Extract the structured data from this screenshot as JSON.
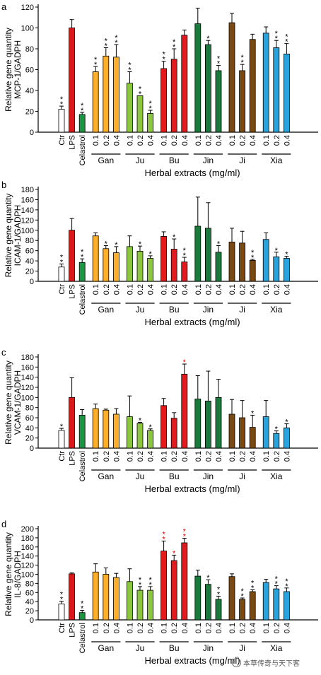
{
  "watermark": {
    "text": "本草传奇与天下客",
    "icon": "wechat-icon"
  },
  "colors": {
    "ctr": "#ffffff",
    "lps": "#d7191c",
    "celastrol": "#1a9641",
    "Gan": "#fdae2a",
    "Ju": "#8cc63f",
    "Bu": "#e31a1c",
    "Jin": "#1a7a3c",
    "Ji": "#7b4a12",
    "Xia": "#29a3dc",
    "sig_black": "#000000",
    "sig_red": "#e00000"
  },
  "chart_data": [
    {
      "panel_label": "a",
      "type": "bar",
      "ylabel": [
        "Relative gene quantity",
        "MCP-1/GADPH"
      ],
      "xlabel": "Herbal extracts (mg/ml)",
      "ylim": [
        0,
        120
      ],
      "yticks": [
        0,
        20,
        40,
        60,
        80,
        100,
        120
      ],
      "controls": [
        {
          "label": "Ctr",
          "value": 22,
          "err": 3,
          "color_key": "ctr",
          "sig": "**",
          "sig_color": "black"
        },
        {
          "label": "LPS",
          "value": 100,
          "err": 8,
          "color_key": "lps",
          "sig": "",
          "sig_color": "black"
        },
        {
          "label": "Celastrol",
          "value": 17,
          "err": 2,
          "color_key": "celastrol",
          "sig": "**",
          "sig_color": "black"
        }
      ],
      "groups": [
        {
          "name": "Gan",
          "color_key": "Gan",
          "doses": [
            "0.1",
            "0.2",
            "0.4"
          ],
          "values": [
            58,
            73,
            72
          ],
          "errs": [
            5,
            8,
            12
          ],
          "sig": [
            "**",
            "**",
            "**"
          ],
          "sig_color": [
            "black",
            "black",
            "black"
          ]
        },
        {
          "name": "Ju",
          "color_key": "Ju",
          "doses": [
            "0.1",
            "0.2",
            "0.4"
          ],
          "values": [
            47,
            35,
            18
          ],
          "errs": [
            11,
            0,
            3
          ],
          "sig": [
            "**",
            "**",
            "**"
          ],
          "sig_color": [
            "black",
            "black",
            "black"
          ]
        },
        {
          "name": "Bu",
          "color_key": "Bu",
          "doses": [
            "0.1",
            "0.2",
            "0.4"
          ],
          "values": [
            61,
            70,
            93
          ],
          "errs": [
            7,
            10,
            5
          ],
          "sig": [
            "**",
            "**",
            ""
          ],
          "sig_color": [
            "black",
            "black",
            "black"
          ]
        },
        {
          "name": "Jin",
          "color_key": "Jin",
          "doses": [
            "0.1",
            "0.2",
            "0.4"
          ],
          "values": [
            104,
            84,
            59
          ],
          "errs": [
            15,
            4,
            5
          ],
          "sig": [
            "",
            "*",
            "**"
          ],
          "sig_color": [
            "black",
            "black",
            "black"
          ]
        },
        {
          "name": "Ji",
          "color_key": "Ji",
          "doses": [
            "0.1",
            "0.2",
            "0.4"
          ],
          "values": [
            105,
            59,
            89
          ],
          "errs": [
            9,
            6,
            5
          ],
          "sig": [
            "",
            "**",
            ""
          ],
          "sig_color": [
            "black",
            "black",
            "black"
          ]
        },
        {
          "name": "Xia",
          "color_key": "Xia",
          "doses": [
            "0.1",
            "0.2",
            "0.4"
          ],
          "values": [
            95,
            81,
            75
          ],
          "errs": [
            6,
            7,
            10
          ],
          "sig": [
            "",
            "**",
            "**"
          ],
          "sig_color": [
            "black",
            "black",
            "black"
          ]
        }
      ]
    },
    {
      "panel_label": "b",
      "type": "bar",
      "ylabel": [
        "Relative gene quantity",
        "ICAM-1/GADPH"
      ],
      "xlabel": "Herbal extracts (mg/ml)",
      "ylim": [
        0,
        180
      ],
      "yticks": [
        0,
        20,
        40,
        60,
        80,
        100,
        120,
        140,
        160,
        180
      ],
      "controls": [
        {
          "label": "Ctr",
          "value": 28,
          "err": 6,
          "color_key": "ctr",
          "sig": "**",
          "sig_color": "black"
        },
        {
          "label": "LPS",
          "value": 100,
          "err": 23,
          "color_key": "lps",
          "sig": "",
          "sig_color": "black"
        },
        {
          "label": "Celastrol",
          "value": 37,
          "err": 7,
          "color_key": "celastrol",
          "sig": "**",
          "sig_color": "black"
        }
      ],
      "groups": [
        {
          "name": "Gan",
          "color_key": "Gan",
          "doses": [
            "0.1",
            "0.2",
            "0.4"
          ],
          "values": [
            89,
            64,
            56
          ],
          "errs": [
            6,
            6,
            12
          ],
          "sig": [
            "",
            "*",
            "*"
          ],
          "sig_color": [
            "black",
            "black",
            "black"
          ]
        },
        {
          "name": "Ju",
          "color_key": "Ju",
          "doses": [
            "0.1",
            "0.2",
            "0.4"
          ],
          "values": [
            68,
            59,
            45
          ],
          "errs": [
            21,
            10,
            5
          ],
          "sig": [
            "",
            "*",
            "*"
          ],
          "sig_color": [
            "black",
            "black",
            "black"
          ]
        },
        {
          "name": "Bu",
          "color_key": "Bu",
          "doses": [
            "0.1",
            "0.2",
            "0.4"
          ],
          "values": [
            88,
            63,
            38
          ],
          "errs": [
            9,
            20,
            9
          ],
          "sig": [
            "",
            "*",
            "**"
          ],
          "sig_color": [
            "black",
            "black",
            "black"
          ]
        },
        {
          "name": "Jin",
          "color_key": "Jin",
          "doses": [
            "0.1",
            "0.2",
            "0.4"
          ],
          "values": [
            108,
            104,
            57
          ],
          "errs": [
            57,
            50,
            13
          ],
          "sig": [
            "",
            "",
            "*"
          ],
          "sig_color": [
            "black",
            "black",
            "black"
          ]
        },
        {
          "name": "Ji",
          "color_key": "Ji",
          "doses": [
            "0.1",
            "0.2",
            "0.4"
          ],
          "values": [
            77,
            75,
            41
          ],
          "errs": [
            27,
            23,
            2
          ],
          "sig": [
            "",
            "",
            "**"
          ],
          "sig_color": [
            "black",
            "black",
            "black"
          ]
        },
        {
          "name": "Xia",
          "color_key": "Xia",
          "doses": [
            "0.1",
            "0.2",
            "0.4"
          ],
          "values": [
            82,
            48,
            45
          ],
          "errs": [
            13,
            9,
            4
          ],
          "sig": [
            "",
            "*",
            "*"
          ],
          "sig_color": [
            "black",
            "black",
            "black"
          ]
        }
      ]
    },
    {
      "panel_label": "c",
      "type": "bar",
      "ylabel": [
        "Relative gene quantity",
        "VCAM-1/GADPH"
      ],
      "xlabel": "Herbal extracts (mg/ml)",
      "ylim": [
        0,
        180
      ],
      "yticks": [
        0,
        20,
        40,
        60,
        80,
        100,
        120,
        140,
        160,
        180
      ],
      "controls": [
        {
          "label": "Ctr",
          "value": 35,
          "err": 4,
          "color_key": "ctr",
          "sig": "*",
          "sig_color": "black"
        },
        {
          "label": "LPS",
          "value": 100,
          "err": 39,
          "color_key": "lps",
          "sig": "",
          "sig_color": "black"
        },
        {
          "label": "Celastrol",
          "value": 65,
          "err": 11,
          "color_key": "celastrol",
          "sig": "",
          "sig_color": "black"
        }
      ],
      "groups": [
        {
          "name": "Gan",
          "color_key": "Gan",
          "doses": [
            "0.1",
            "0.2",
            "0.4"
          ],
          "values": [
            78,
            75,
            67
          ],
          "errs": [
            9,
            2,
            11
          ],
          "sig": [
            "",
            "",
            ""
          ],
          "sig_color": [
            "black",
            "black",
            "black"
          ]
        },
        {
          "name": "Ju",
          "color_key": "Ju",
          "doses": [
            "0.1",
            "0.2",
            "0.4"
          ],
          "values": [
            62,
            49,
            35
          ],
          "errs": [
            41,
            2,
            3
          ],
          "sig": [
            "",
            "*",
            "*"
          ],
          "sig_color": [
            "black",
            "black",
            "black"
          ]
        },
        {
          "name": "Bu",
          "color_key": "Bu",
          "doses": [
            "0.1",
            "0.2",
            "0.4"
          ],
          "values": [
            84,
            59,
            146
          ],
          "errs": [
            14,
            11,
            20
          ],
          "sig": [
            "",
            "",
            "*"
          ],
          "sig_color": [
            "black",
            "black",
            "red"
          ]
        },
        {
          "name": "Jin",
          "color_key": "Jin",
          "doses": [
            "0.1",
            "0.2",
            "0.4"
          ],
          "values": [
            97,
            93,
            100
          ],
          "errs": [
            46,
            59,
            36
          ],
          "sig": [
            "",
            "",
            ""
          ],
          "sig_color": [
            "black",
            "black",
            "black"
          ]
        },
        {
          "name": "Ji",
          "color_key": "Ji",
          "doses": [
            "0.1",
            "0.2",
            "0.4"
          ],
          "values": [
            67,
            60,
            41
          ],
          "errs": [
            29,
            34,
            24
          ],
          "sig": [
            "",
            "",
            "*"
          ],
          "sig_color": [
            "black",
            "black",
            "black"
          ]
        },
        {
          "name": "Xia",
          "color_key": "Xia",
          "doses": [
            "0.1",
            "0.2",
            "0.4"
          ],
          "values": [
            62,
            29,
            40
          ],
          "errs": [
            32,
            5,
            8
          ],
          "sig": [
            "",
            "*",
            "*"
          ],
          "sig_color": [
            "black",
            "black",
            "black"
          ]
        }
      ]
    },
    {
      "panel_label": "d",
      "type": "bar",
      "ylabel": [
        "Relative gene quantity",
        "IL-8/GADPH"
      ],
      "xlabel": "Herbal extracts (mg/ml)",
      "ylim": [
        0,
        200
      ],
      "yticks": [
        0,
        20,
        40,
        60,
        80,
        100,
        120,
        140,
        160,
        180,
        200
      ],
      "controls": [
        {
          "label": "Ctr",
          "value": 35,
          "err": 6,
          "color_key": "ctr",
          "sig": "**",
          "sig_color": "black"
        },
        {
          "label": "LPS",
          "value": 101,
          "err": 2,
          "color_key": "lps",
          "sig": "",
          "sig_color": "black"
        },
        {
          "label": "Celastrol",
          "value": 16,
          "err": 5,
          "color_key": "celastrol",
          "sig": "**",
          "sig_color": "black"
        }
      ],
      "groups": [
        {
          "name": "Gan",
          "color_key": "Gan",
          "doses": [
            "0.1",
            "0.2",
            "0.4"
          ],
          "values": [
            105,
            100,
            93
          ],
          "errs": [
            18,
            14,
            9
          ],
          "sig": [
            "",
            "",
            ""
          ],
          "sig_color": [
            "black",
            "black",
            "black"
          ]
        },
        {
          "name": "Ju",
          "color_key": "Ju",
          "doses": [
            "0.1",
            "0.2",
            "0.4"
          ],
          "values": [
            84,
            65,
            65
          ],
          "errs": [
            28,
            8,
            8
          ],
          "sig": [
            "",
            "**",
            "**"
          ],
          "sig_color": [
            "black",
            "black",
            "black"
          ]
        },
        {
          "name": "Bu",
          "color_key": "Bu",
          "doses": [
            "0.1",
            "0.2",
            "0.4"
          ],
          "values": [
            151,
            130,
            169
          ],
          "errs": [
            22,
            12,
            10
          ],
          "sig": [
            "**",
            "*",
            "**"
          ],
          "sig_color": [
            "red",
            "red",
            "red"
          ]
        },
        {
          "name": "Jin",
          "color_key": "Jin",
          "doses": [
            "0.1",
            "0.2",
            "0.4"
          ],
          "values": [
            96,
            78,
            45
          ],
          "errs": [
            13,
            10,
            7
          ],
          "sig": [
            "",
            "*",
            "**"
          ],
          "sig_color": [
            "black",
            "black",
            "black"
          ]
        },
        {
          "name": "Ji",
          "color_key": "Ji",
          "doses": [
            "0.1",
            "0.2",
            "0.4"
          ],
          "values": [
            95,
            45,
            62
          ],
          "errs": [
            6,
            3,
            4
          ],
          "sig": [
            "",
            "**",
            "**"
          ],
          "sig_color": [
            "black",
            "black",
            "black"
          ]
        },
        {
          "name": "Xia",
          "color_key": "Xia",
          "doses": [
            "0.1",
            "0.2",
            "0.4"
          ],
          "values": [
            82,
            68,
            62
          ],
          "errs": [
            7,
            7,
            8
          ],
          "sig": [
            "",
            "**",
            "**"
          ],
          "sig_color": [
            "black",
            "black",
            "black"
          ]
        }
      ]
    }
  ]
}
